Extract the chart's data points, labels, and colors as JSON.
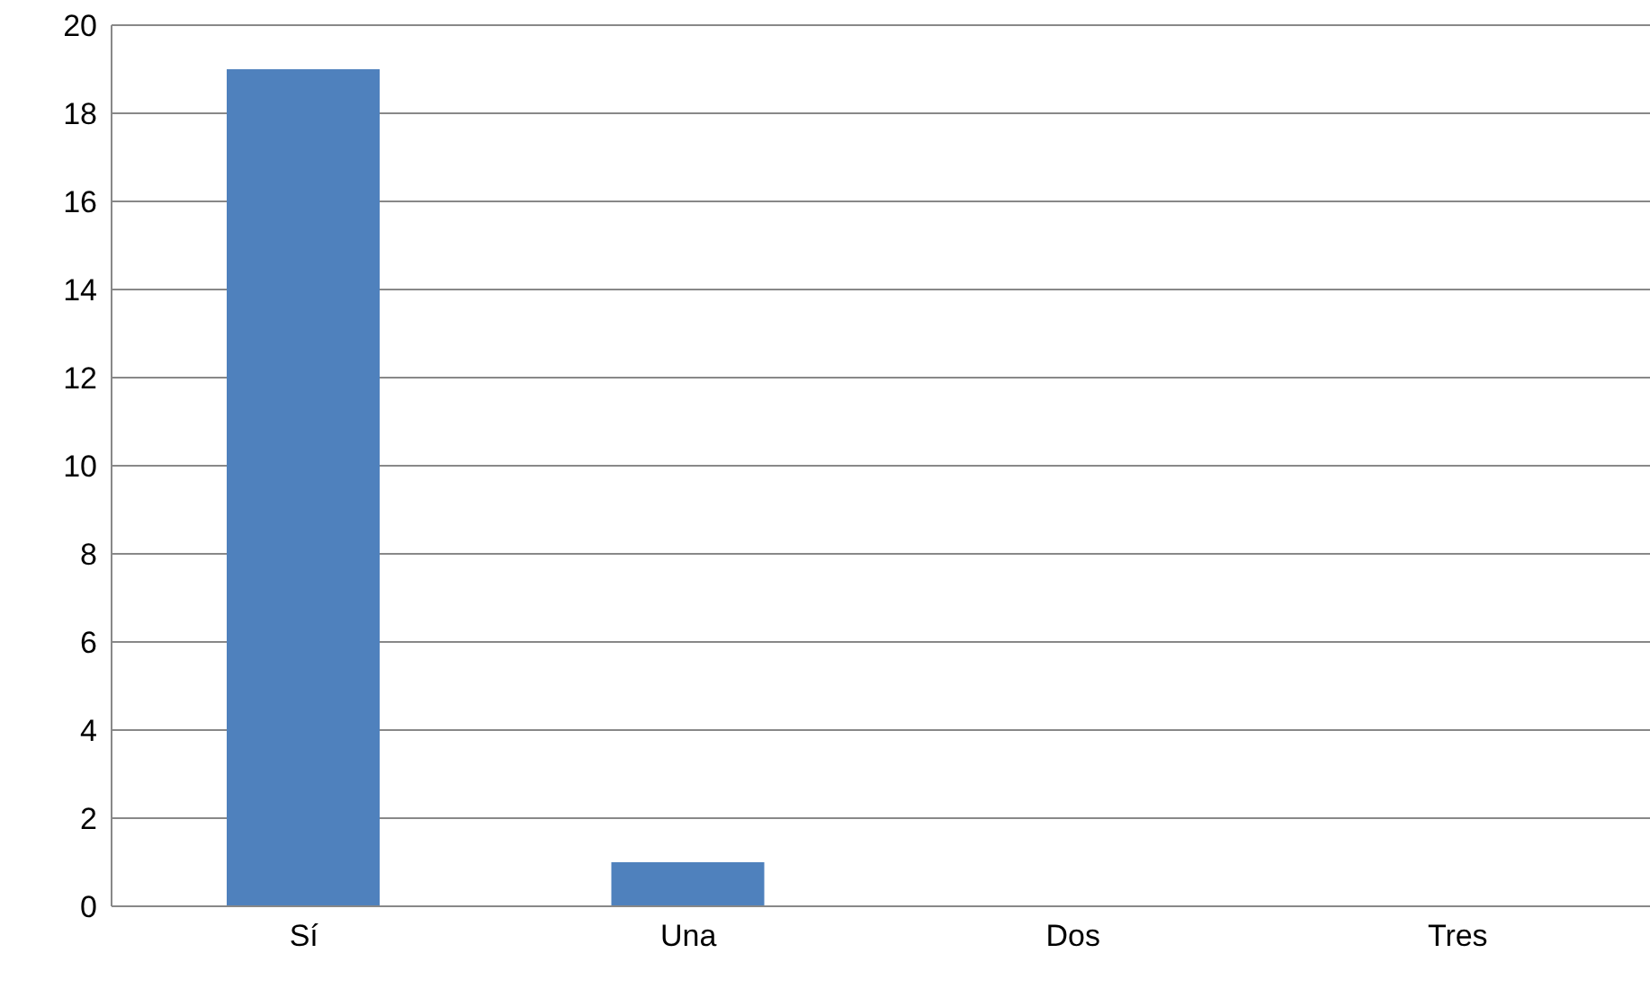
{
  "chart_data": {
    "type": "bar",
    "categories": [
      "Sí",
      "Una",
      "Dos",
      "Tres"
    ],
    "values": [
      19,
      1,
      0,
      0
    ],
    "color": "#4f81bd",
    "ylim": [
      0,
      20
    ],
    "yticks": [
      0,
      2,
      4,
      6,
      8,
      10,
      12,
      14,
      16,
      18,
      20
    ],
    "grid": "y"
  }
}
